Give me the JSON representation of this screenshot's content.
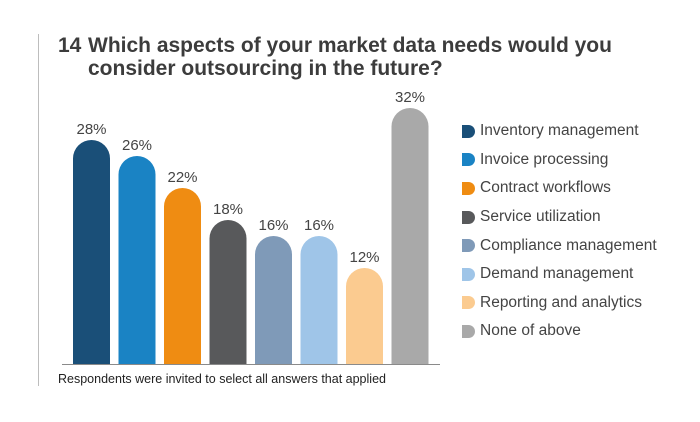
{
  "question_number": "14",
  "title": "Which aspects of your market data needs would you consider outsourcing in the future?",
  "footnote": "Respondents were invited to select all answers that applied",
  "chart_data": {
    "type": "bar",
    "categories": [
      "Inventory management",
      "Invoice processing",
      "Contract workflows",
      "Service utilization",
      "Compliance management",
      "Demand management",
      "Reporting and analytics",
      "None of above"
    ],
    "values": [
      28,
      26,
      22,
      18,
      16,
      16,
      12,
      32
    ],
    "value_labels": [
      "28%",
      "26%",
      "22%",
      "18%",
      "16%",
      "16%",
      "12%",
      "32%"
    ],
    "unit": "%",
    "colors": [
      "#1a4f78",
      "#1a83c4",
      "#ef8c12",
      "#58595b",
      "#7f9ab8",
      "#9fc5e8",
      "#fbcb90",
      "#a9a9a9"
    ],
    "ylim": [
      0,
      32
    ],
    "grid": false,
    "legend_position": "right"
  }
}
